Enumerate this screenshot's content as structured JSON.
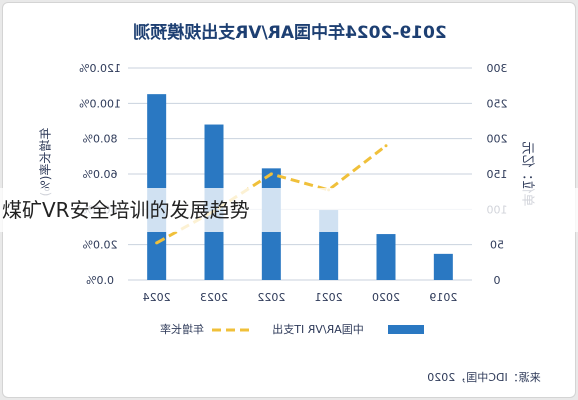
{
  "overlay_caption": "煤矿VR安全培训的发展趋势",
  "colors": {
    "bar": "#2a78c2",
    "line": "#f0c03a",
    "title": "#1d3f72",
    "axis_text": "#2e3a59",
    "grid": "#c9d2de"
  },
  "chart_data": {
    "type": "bar",
    "title": "2019-2024年中国AR/VR支出规模预测",
    "categories": [
      "2024",
      "2023",
      "2022",
      "2021",
      "2020",
      "2019"
    ],
    "series": [
      {
        "name": "中国AR/VR IT支出",
        "type": "bar",
        "axis": "right",
        "values": [
          263,
          220,
          158,
          99,
          65,
          37
        ]
      },
      {
        "name": "年增长率",
        "type": "line",
        "axis": "left",
        "values": [
          0.21,
          0.39,
          0.6,
          0.51,
          0.76,
          null
        ]
      }
    ],
    "left_axis": {
      "label": "年增长率(%)",
      "ticks": [
        "120.0%",
        "100.0%",
        "80.0%",
        "60.0%",
        "40.0%",
        "20.0%",
        "0.0%"
      ],
      "ylim": [
        0,
        1.2
      ]
    },
    "right_axis": {
      "label": "单位：亿元",
      "ticks": [
        "300",
        "250",
        "200",
        "150",
        "100",
        "50",
        "0"
      ],
      "ylim": [
        0,
        300
      ]
    },
    "legend": {
      "placement": "bottom"
    },
    "source": "来源：IDC中国，2020"
  }
}
